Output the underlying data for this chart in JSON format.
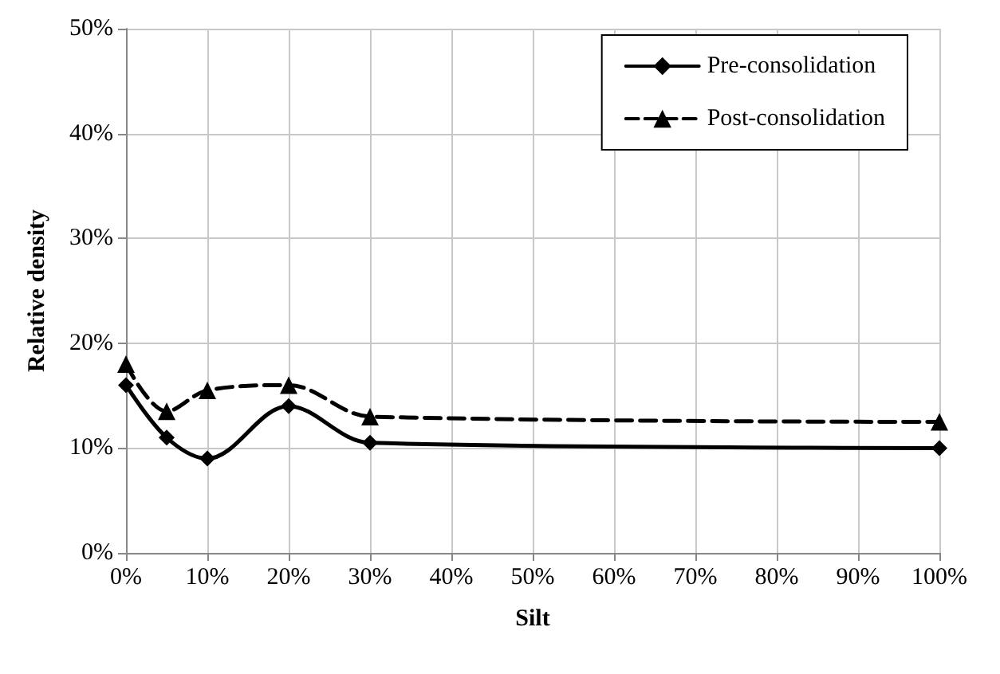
{
  "chart_data": {
    "type": "line",
    "xlabel": "Silt",
    "ylabel": "Relative density",
    "x": [
      0,
      5,
      10,
      20,
      30,
      100
    ],
    "series": [
      {
        "name": "Pre-consolidation",
        "color": "#000000",
        "values": [
          16,
          11,
          9,
          14,
          10.5,
          10
        ],
        "marker": "diamond",
        "line_style": "solid"
      },
      {
        "name": "Post-consolidation",
        "color": "#000000",
        "values": [
          18,
          13.5,
          15.5,
          16,
          13,
          12.5
        ],
        "marker": "triangle",
        "line_style": "dashed"
      }
    ],
    "xlim": [
      0,
      100
    ],
    "xticks": [
      {
        "value": 0,
        "label": "0%"
      },
      {
        "value": 10,
        "label": "10%"
      },
      {
        "value": 20,
        "label": "20%"
      },
      {
        "value": 30,
        "label": "30%"
      },
      {
        "value": 40,
        "label": "40%"
      },
      {
        "value": 50,
        "label": "50%"
      },
      {
        "value": 60,
        "label": "60%"
      },
      {
        "value": 70,
        "label": "70%"
      },
      {
        "value": 80,
        "label": "80%"
      },
      {
        "value": 90,
        "label": "90%"
      },
      {
        "value": 100,
        "label": "100%"
      }
    ],
    "ylim": [
      0,
      50
    ],
    "yticks": [
      {
        "value": 0,
        "label": "0%"
      },
      {
        "value": 10,
        "label": "10%"
      },
      {
        "value": 20,
        "label": "20%"
      },
      {
        "value": 30,
        "label": "30%"
      },
      {
        "value": 40,
        "label": "40%"
      },
      {
        "value": 50,
        "label": "50%"
      }
    ],
    "grid": true,
    "legend": "top right"
  }
}
